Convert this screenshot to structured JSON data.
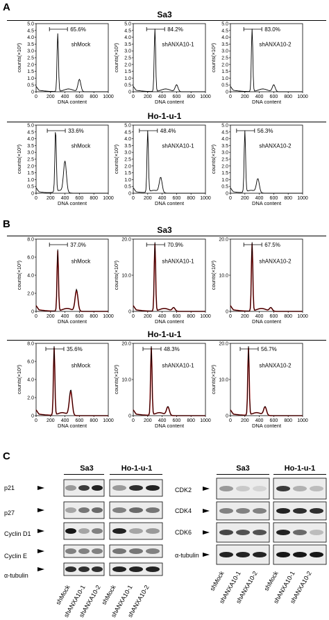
{
  "panels": {
    "A": {
      "letter": "A",
      "rows": [
        {
          "title": "Sa3",
          "plots": [
            {
              "label": "shMock",
              "percent": "65.6%",
              "peak": 0.85,
              "g2": 0.18
            },
            {
              "label": "shANXA10-1",
              "percent": "84.2%",
              "peak": 0.92,
              "g2": 0.1
            },
            {
              "label": "shANXA10-2",
              "percent": "83.0%",
              "peak": 0.92,
              "g2": 0.1
            }
          ]
        },
        {
          "title": "Ho-1-u-1",
          "plots": [
            {
              "label": "shMock",
              "percent": "33.6%",
              "peak": 0.92,
              "g2": 0.45
            },
            {
              "label": "shANXA10-1",
              "percent": "48.4%",
              "peak": 0.9,
              "g2": 0.22
            },
            {
              "label": "shANXA10-2",
              "percent": "56.3%",
              "peak": 0.9,
              "g2": 0.2
            }
          ]
        }
      ]
    },
    "B": {
      "letter": "B",
      "rows": [
        {
          "title": "Sa3",
          "plots": [
            {
              "label": "shMock",
              "percent": "37.0%",
              "yticks": [
                "0",
                "2.0",
                "4.0",
                "6.0",
                "8.0"
              ],
              "peak": 0.85,
              "g2": 0.3
            },
            {
              "label": "shANXA10-1",
              "percent": "70.9%",
              "yticks": [
                "0",
                "10.0",
                "20.0"
              ],
              "peak": 0.95,
              "g2": 0.05
            },
            {
              "label": "shANXA10-2",
              "percent": "67.5%",
              "yticks": [
                "0",
                "10.0",
                "20.0"
              ],
              "peak": 0.95,
              "g2": 0.05
            }
          ]
        },
        {
          "title": "Ho-1-u-1",
          "plots": [
            {
              "label": "shMock",
              "percent": "35.6%",
              "yticks": [
                "0",
                "2.0",
                "4.0",
                "6.0",
                "8.0"
              ],
              "peak": 0.95,
              "g2": 0.35
            },
            {
              "label": "shANXA10-1",
              "percent": "48.3%",
              "yticks": [
                "0",
                "10.0",
                "20.0"
              ],
              "peak": 0.95,
              "g2": 0.12
            },
            {
              "label": "shANXA10-2",
              "percent": "56.7%",
              "yticks": [
                "0",
                "10.0",
                "20.0"
              ],
              "peak": 0.95,
              "g2": 0.12
            }
          ]
        }
      ]
    },
    "axis": {
      "ylabel": "counts(×10³)",
      "xlabel": "DNA content",
      "xticks": [
        "0",
        "200",
        "400",
        "600",
        "800",
        "1000"
      ],
      "yticks_A": [
        "0",
        "0.5",
        "1.0",
        "1.5",
        "2.0",
        "2.5",
        "3.0",
        "3.5",
        "4.0",
        "4.5",
        "5.0"
      ]
    },
    "C": {
      "letter": "C",
      "left": {
        "groups": [
          "Sa3",
          "Ho-1-u-1"
        ],
        "rows": [
          "p21",
          "p27",
          "Cyclin D1",
          "Cyclin E",
          "α-tubulin"
        ],
        "lanes": [
          "shMock",
          "shANXA10-1",
          "shANXA10-2"
        ]
      },
      "right": {
        "groups": [
          "Sa3",
          "Ho-1-u-1"
        ],
        "rows": [
          "CDK2",
          "CDK4",
          "CDK6",
          "α-tubulin"
        ],
        "lanes": [
          "shMock",
          "shANXA10-1",
          "shANXA10-2"
        ]
      }
    }
  }
}
